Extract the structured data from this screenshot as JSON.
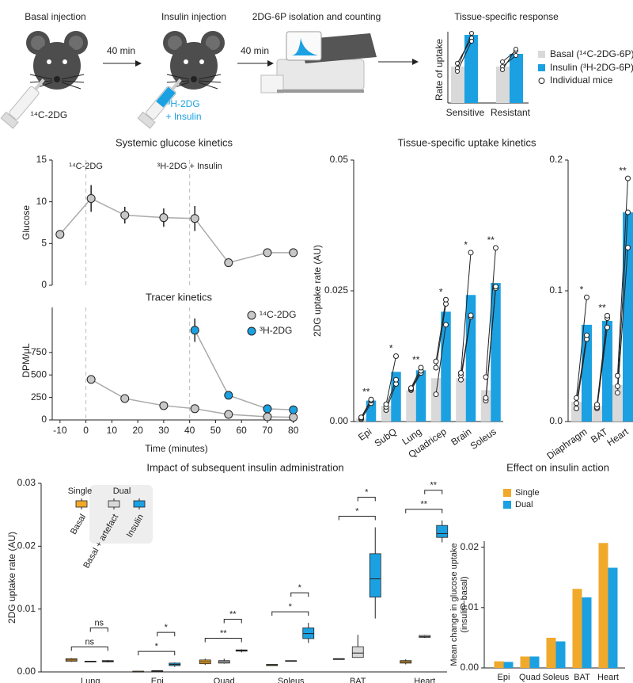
{
  "schematic": {
    "steps": [
      "Basal injection",
      "Insulin injection",
      "2DG-6P isolation and counting",
      "Tissue-specific response"
    ],
    "intervals": [
      "40 min",
      "40 min"
    ],
    "basal_tracer": "¹⁴C-2DG",
    "insulin_tracer": [
      "³H-2DG",
      "+ Insulin"
    ],
    "response": {
      "ylabel": "Rate of uptake",
      "groups": [
        "Sensitive",
        "Resistant"
      ],
      "legend": [
        "Basal (¹⁴C-2DG-6P)",
        "Insulin (³H-2DG-6P)",
        "Individual mice"
      ]
    }
  },
  "chart_data": [
    {
      "type": "line",
      "title": "Systemic glucose kinetics",
      "ylabel": "Glucose",
      "xlim": [
        -13,
        81
      ],
      "ylim": [
        0,
        15
      ],
      "yticks": [
        0,
        5,
        10,
        15
      ],
      "vlines": [
        0,
        40
      ],
      "annotations": [
        "¹⁴C-2DG",
        "³H-2DG + Insulin"
      ],
      "series": [
        {
          "color": "#c8c8c8",
          "x": [
            -10,
            2,
            15,
            30,
            42,
            55,
            70,
            80
          ],
          "values": [
            6.1,
            10.4,
            8.4,
            8.1,
            8.0,
            2.7,
            3.9,
            3.9
          ],
          "errors": [
            0.5,
            1.6,
            1.0,
            1.1,
            1.5,
            0.2,
            0.4,
            0.5
          ]
        }
      ]
    },
    {
      "type": "line",
      "title": "Tracer kinetics",
      "ylabel": "DPM/μL",
      "xlabel": "Time (minutes)",
      "xlim": [
        -13,
        81
      ],
      "xticks": [
        -10,
        0,
        10,
        20,
        30,
        40,
        50,
        60,
        70,
        80
      ],
      "ylim": [
        0,
        1250
      ],
      "yticks": [
        0,
        250,
        500,
        750
      ],
      "vlines": [
        0,
        40
      ],
      "legend": "upper right",
      "series": [
        {
          "name": "¹⁴C-2DG",
          "color": "#c8c8c8",
          "x": [
            2,
            15,
            30,
            42,
            55,
            70,
            80
          ],
          "values": [
            450,
            238,
            159,
            125,
            62,
            35,
            30
          ]
        },
        {
          "name": "³H-2DG",
          "color": "#1ba1e2",
          "x": [
            42,
            55,
            70,
            80
          ],
          "values": [
            997,
            274,
            124,
            112
          ],
          "errors": [
            130,
            null,
            null,
            null
          ]
        }
      ]
    },
    {
      "type": "bar",
      "title": "Tissue-specific uptake kinetics",
      "ylabel": "2DG uptake rate (AU)",
      "categories": [
        "Epi",
        "SubQ",
        "Lung",
        "Quadricep",
        "Brain",
        "Soleus"
      ],
      "ylim": [
        0,
        0.05
      ],
      "yticks": [
        {
          "value": 0,
          "label": "0.00"
        },
        0.025,
        0.05
      ],
      "significance": [
        "**",
        "*",
        "**",
        "*",
        "*",
        "**"
      ],
      "series": [
        {
          "color": "#d9d9d9",
          "values": [
            0.0006,
            0.003,
            0.006,
            0.0083,
            0.0083,
            0.006
          ],
          "points": [
            [
              0.0004,
              0.0006,
              0.0008
            ],
            [
              0.0022,
              0.0028,
              0.0033
            ],
            [
              0.006,
              0.0062,
              0.0064
            ],
            [
              0.0052,
              0.0103,
              0.0115
            ],
            [
              0.008,
              0.0088,
              0.0093
            ],
            [
              0.004,
              0.0045,
              0.0085
            ]
          ]
        },
        {
          "color": "#1ba1e2",
          "values": [
            0.004,
            0.0095,
            0.0098,
            0.021,
            0.0242,
            0.0265
          ],
          "points": [
            [
              0.0035,
              0.004,
              0.0042
            ],
            [
              0.0072,
              0.008,
              0.0125
            ],
            [
              0.0093,
              0.0097,
              0.0103
            ],
            [
              0.0185,
              0.0225,
              0.0233
            ],
            [
              0.02,
              0.0203,
              0.0323
            ],
            [
              0.0255,
              0.0258,
              0.0332
            ]
          ]
        }
      ]
    },
    {
      "type": "bar",
      "categories": [
        "Diaphragm",
        "BAT",
        "Heart"
      ],
      "ylim": [
        0,
        0.2
      ],
      "yticks": [
        {
          "value": 0,
          "label": "0.0"
        },
        0.1,
        0.2
      ],
      "significance": [
        "*",
        "**",
        "**"
      ],
      "series": [
        {
          "color": "#d9d9d9",
          "values": [
            0.015,
            0.012,
            0.028
          ],
          "points": [
            [
              0.01,
              0.014,
              0.018
            ],
            [
              0.01,
              0.011,
              0.013
            ],
            [
              0.022,
              0.027,
              0.035
            ]
          ]
        },
        {
          "color": "#1ba1e2",
          "values": [
            0.074,
            0.077,
            0.16
          ],
          "points": [
            [
              0.063,
              0.066,
              0.095
            ],
            [
              0.072,
              0.079,
              0.081
            ],
            [
              0.133,
              0.16,
              0.186
            ]
          ]
        }
      ]
    },
    {
      "type": "box",
      "title": "Impact of subsequent insulin administration",
      "ylabel": "2DG uptake rate (AU)",
      "categories": [
        "Lung",
        "Epi",
        "Quad",
        "Soleus",
        "BAT",
        "Heart"
      ],
      "ylim": [
        0,
        0.03
      ],
      "yticks": [
        {
          "value": 0,
          "label": "0.00"
        },
        0.01,
        0.02,
        0.03
      ],
      "legend_groups": [
        "Single",
        "Dual"
      ],
      "comparisons": [
        [
          "ns",
          "ns"
        ],
        [
          "*",
          "*"
        ],
        [
          "**",
          "**"
        ],
        [
          "*",
          "*"
        ],
        [
          "*",
          "*"
        ],
        [
          "**",
          "**"
        ]
      ],
      "series": [
        {
          "name": "Basal",
          "color": "#f0a92b",
          "boxes": [
            [
              0.0016,
              0.0017,
              0.0019,
              0.0021,
              0.0022
            ],
            [
              0.0001,
              0.0001,
              0.0001,
              0.0001,
              0.0001
            ],
            [
              0.0011,
              0.0013,
              0.0016,
              0.0019,
              0.0021
            ],
            [
              0.001,
              0.001,
              0.0011,
              0.0012,
              0.0012
            ],
            [
              0.0021,
              0.0021,
              0.0021,
              0.0021,
              0.0021
            ],
            [
              0.0012,
              0.0014,
              0.0016,
              0.0018,
              0.002
            ]
          ]
        },
        {
          "name": "Basal + artefact",
          "color": "#d9d9d9",
          "boxes": [
            [
              0.0016,
              0.0016,
              0.0017,
              0.0017,
              0.0017
            ],
            [
              0.0002,
              0.0002,
              0.0002,
              0.0002,
              0.0002
            ],
            [
              0.0013,
              0.0014,
              0.0016,
              0.0018,
              0.0021
            ],
            [
              0.0017,
              0.0017,
              0.0017,
              0.0018,
              0.0018
            ],
            [
              0.0023,
              0.0023,
              0.003,
              0.004,
              0.0059
            ],
            [
              0.0054,
              0.0055,
              0.0056,
              0.0058,
              0.0059
            ]
          ]
        },
        {
          "name": "Insulin",
          "color": "#1ba1e2",
          "boxes": [
            [
              0.0015,
              0.0016,
              0.0017,
              0.0018,
              0.0019
            ],
            [
              0.0008,
              0.001,
              0.0012,
              0.0014,
              0.0015
            ],
            [
              0.0031,
              0.0033,
              0.0034,
              0.0035,
              0.0036
            ],
            [
              0.0046,
              0.0053,
              0.0061,
              0.007,
              0.0078
            ],
            [
              0.0085,
              0.0119,
              0.0148,
              0.0188,
              0.023
            ],
            [
              0.0206,
              0.0214,
              0.022,
              0.0233,
              0.0241
            ]
          ]
        }
      ]
    },
    {
      "type": "bar",
      "title": "Effect on insulin action",
      "ylabel": [
        "Mean change in glucose uptake",
        "(insulin−basal)"
      ],
      "categories": [
        "Epi",
        "Quad",
        "Soleus",
        "BAT",
        "Heart"
      ],
      "ylim": [
        0,
        0.021
      ],
      "yticks": [
        {
          "value": 0,
          "label": "0.00"
        },
        0.01,
        0.02
      ],
      "legend": "upper left",
      "series": [
        {
          "name": "Single",
          "color": "#f0a92b",
          "values": [
            0.0011,
            0.0019,
            0.005,
            0.0131,
            0.0207
          ]
        },
        {
          "name": "Dual",
          "color": "#1ba1e2",
          "values": [
            0.001,
            0.0019,
            0.0044,
            0.0117,
            0.0166
          ]
        }
      ]
    }
  ]
}
